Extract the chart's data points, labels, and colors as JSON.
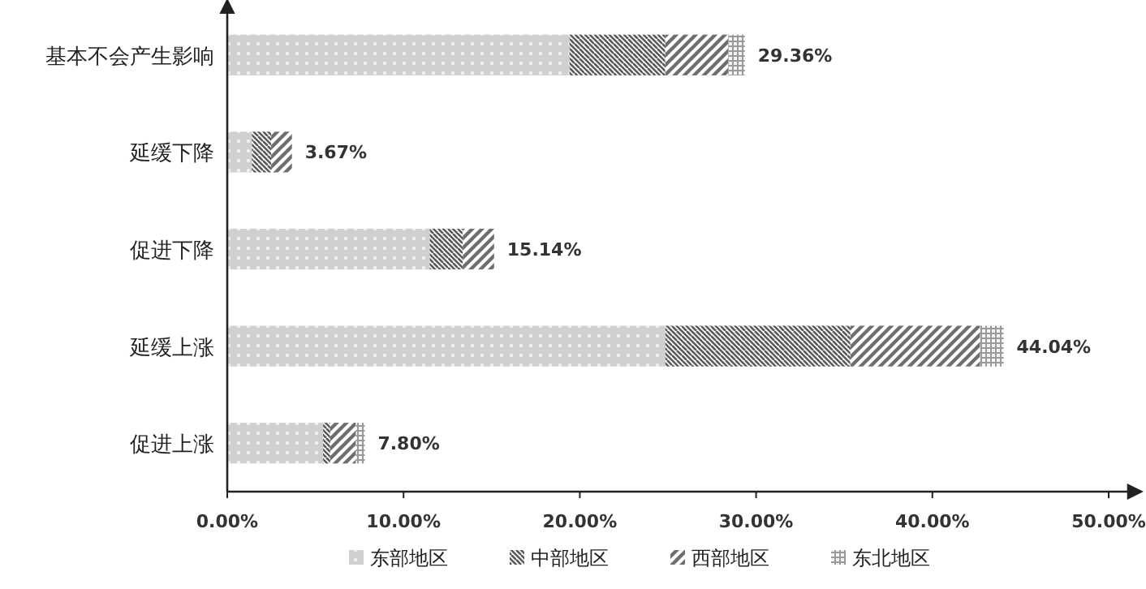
{
  "chart_data": {
    "type": "bar",
    "orientation": "horizontal",
    "stacked": true,
    "categories": [
      "基本不会产生影响",
      "延缓下降",
      "促进下降",
      "延缓上涨",
      "促进上涨"
    ],
    "series": [
      {
        "name": "东部地区",
        "color": "#c4c4c4",
        "values": [
          19.41,
          1.4,
          11.49,
          24.85,
          5.44
        ]
      },
      {
        "name": "中部地区",
        "color": "#5a5a5a",
        "values": [
          5.44,
          1.09,
          1.87,
          10.5,
          0.4
        ]
      },
      {
        "name": "西部地区",
        "color": "#6e6e6e",
        "values": [
          3.57,
          1.18,
          1.78,
          7.36,
          1.46
        ]
      },
      {
        "name": "东北地区",
        "color": "#9a9a9a",
        "values": [
          0.94,
          0,
          0,
          1.33,
          0.5
        ]
      }
    ],
    "totals": [
      "29.36%",
      "3.67%",
      "15.14%",
      "44.04%",
      "7.80%"
    ],
    "xlim": [
      0,
      50
    ],
    "xticks": [
      {
        "value": 0,
        "label": "0.00%"
      },
      {
        "value": 10,
        "label": "10.00%"
      },
      {
        "value": 20,
        "label": "20.00%"
      },
      {
        "value": 30,
        "label": "30.00%"
      },
      {
        "value": 40,
        "label": "40.00%"
      },
      {
        "value": 50,
        "label": "50.00%"
      }
    ],
    "legend": "bottom",
    "grid": false
  }
}
